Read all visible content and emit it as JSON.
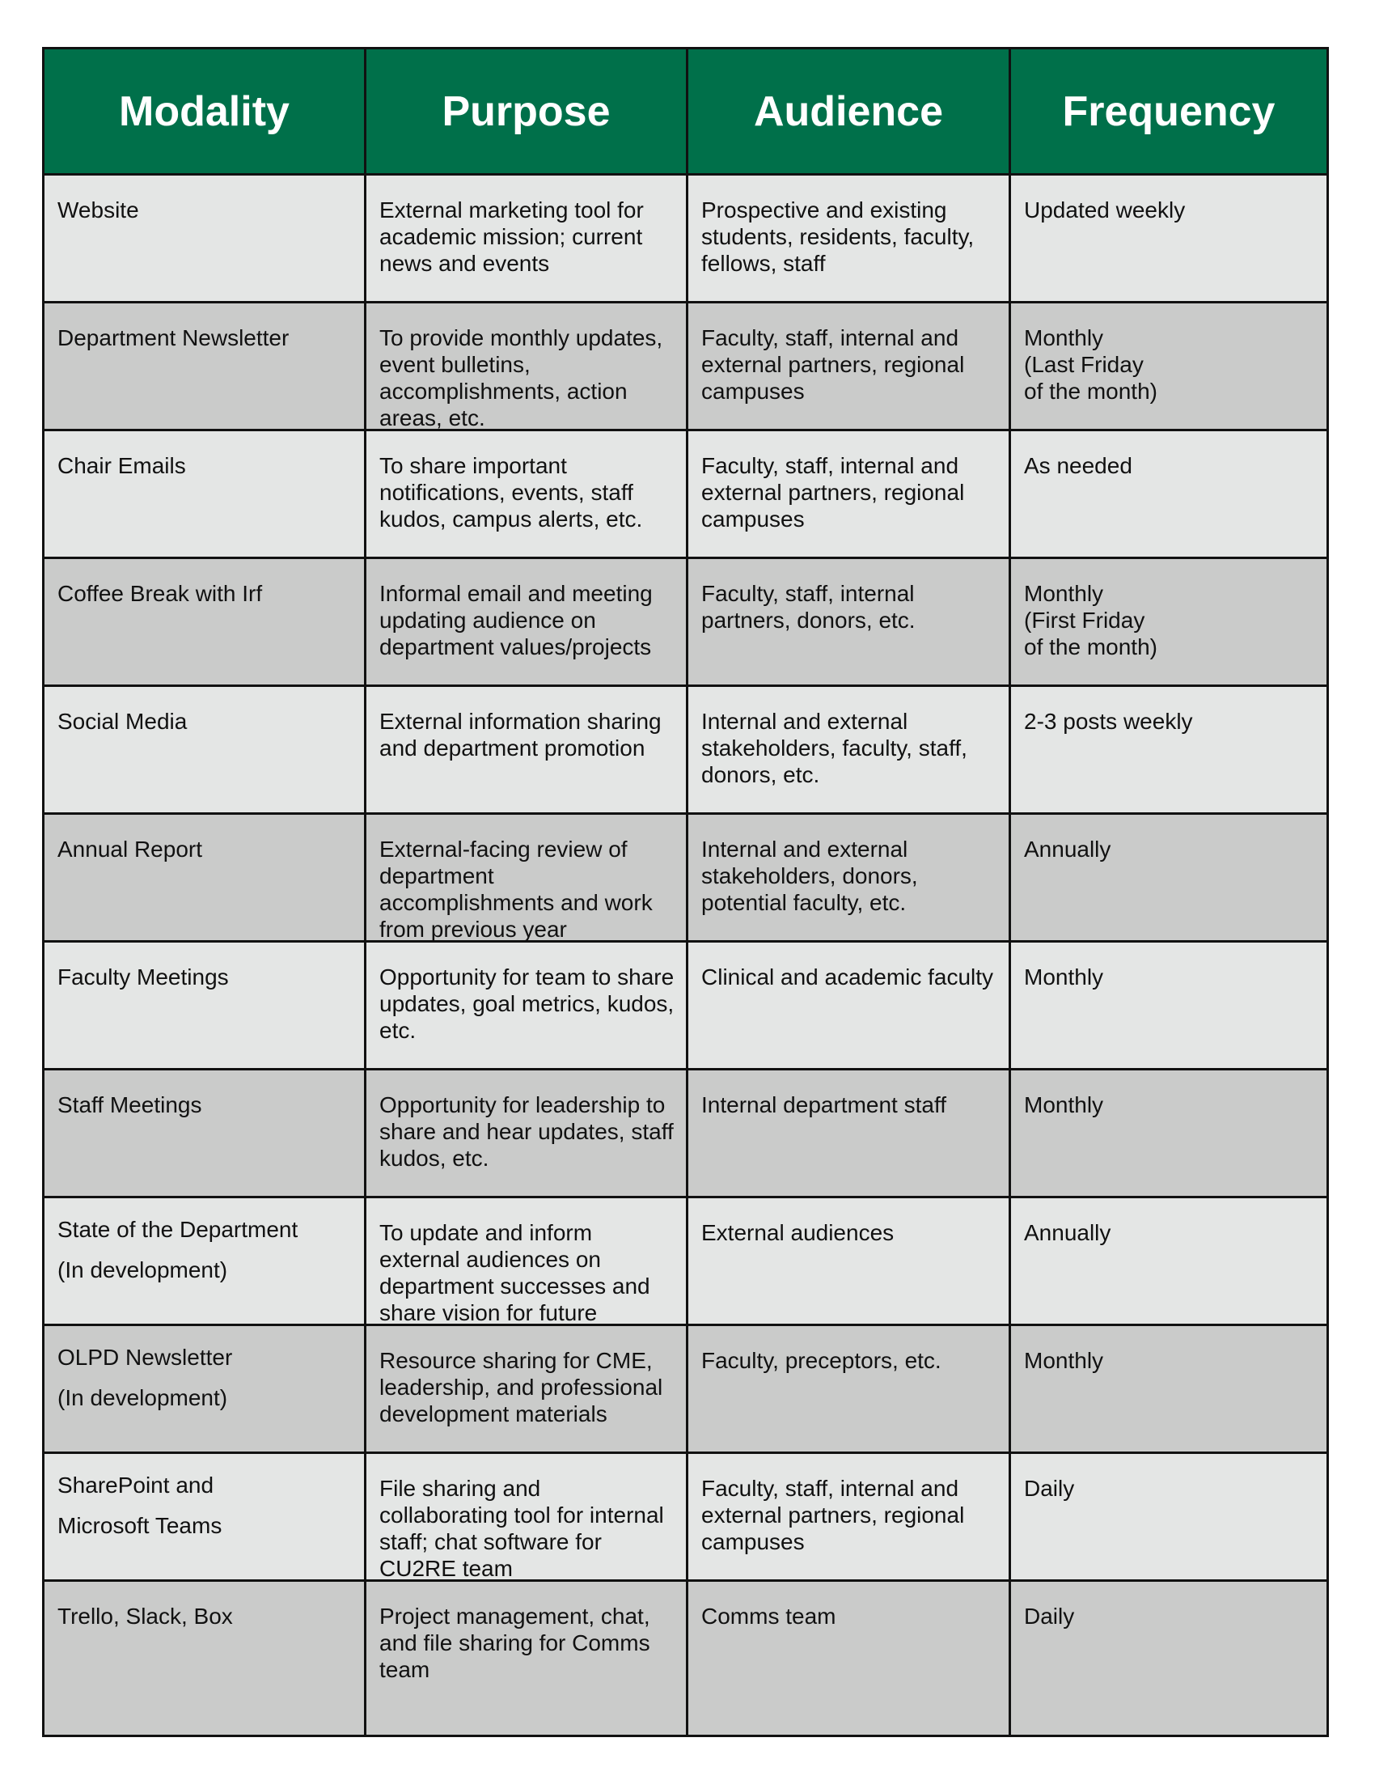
{
  "colors": {
    "header_bg": "#00704A",
    "row_light": "#E4E6E5",
    "row_dark": "#CACBCA",
    "border": "#111111"
  },
  "table": {
    "headers": [
      "Modality",
      "Purpose",
      "Audience",
      "Frequency"
    ],
    "rows": [
      [
        "Website",
        "External marketing tool for academic mission; current news and events",
        "Prospective and existing students, residents, faculty, fellows, staff",
        "Updated weekly"
      ],
      [
        "Department Newsletter",
        "To provide monthly updates, event bulletins, accomplishments, action areas, etc.",
        "Faculty, staff, internal and external partners, regional campuses",
        "Monthly\n(Last Friday\nof the month)"
      ],
      [
        "Chair Emails",
        "To share important notifications, events, staff kudos, campus alerts, etc.",
        "Faculty, staff, internal and external partners, regional campuses",
        "As needed"
      ],
      [
        "Coffee Break with Irf",
        "Informal email and meeting updating audience on department values/projects",
        "Faculty, staff, internal partners, donors, etc.",
        "Monthly\n(First Friday\nof the month)"
      ],
      [
        "Social Media",
        "External information sharing and department promotion",
        "Internal and external stakeholders, faculty, staff, donors, etc.",
        "2-3 posts weekly"
      ],
      [
        "Annual Report",
        "External-facing review of department accomplishments and work from previous year",
        "Internal and external stakeholders, donors, potential faculty, etc.",
        "Annually"
      ],
      [
        "Faculty Meetings",
        "Opportunity for team to share updates, goal metrics, kudos, etc.",
        "Clinical and academic faculty",
        "Monthly"
      ],
      [
        "Staff Meetings",
        "Opportunity for leadership to share and hear updates, staff kudos, etc.",
        "Internal department staff",
        "Monthly"
      ],
      [
        "State of the Department\n(In development)",
        "To update and inform external audiences on department successes and share vision for future",
        "External audiences",
        "Annually"
      ],
      [
        "OLPD Newsletter\n(In development)",
        "Resource sharing for CME, leadership, and professional development materials",
        "Faculty, preceptors, etc.",
        "Monthly"
      ],
      [
        "SharePoint and\nMicrosoft Teams",
        "File sharing and collaborating tool for internal staff; chat software for CU2RE team",
        "Faculty, staff, internal and external partners, regional campuses",
        "Daily"
      ],
      [
        "Trello, Slack, Box",
        "Project management, chat, and file sharing for Comms team",
        "Comms team",
        "Daily"
      ]
    ]
  }
}
